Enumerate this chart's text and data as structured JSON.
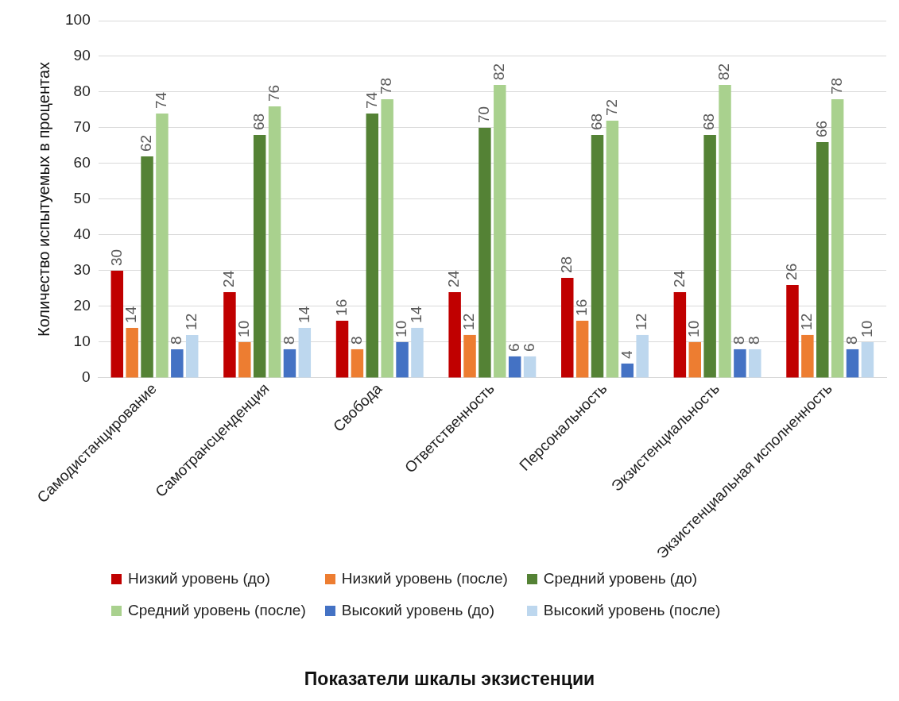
{
  "chart_data": {
    "type": "bar",
    "annotations": [
      "Показатели шкалы экзистенции"
    ],
    "ylabel": "Количество испытуемых в процентах",
    "categories": [
      "Самодистанцирование",
      "Самотрансценденция",
      "Свобода",
      "Ответственность",
      "Персональность",
      "Экзистенциальность",
      "Экзистенциальная исполненность"
    ],
    "series": [
      {
        "name": "Низкий уровень (до)",
        "color": "#c00000",
        "values": [
          30,
          24,
          16,
          24,
          28,
          24,
          26
        ]
      },
      {
        "name": "Низкий уровень (после)",
        "color": "#ed7d31",
        "values": [
          14,
          10,
          8,
          12,
          16,
          10,
          12
        ]
      },
      {
        "name": "Средний уровень (до)",
        "color": "#548235",
        "values": [
          62,
          68,
          74,
          70,
          68,
          68,
          66
        ]
      },
      {
        "name": "Средний уровень (после)",
        "color": "#a9d18e",
        "values": [
          74,
          76,
          78,
          82,
          72,
          82,
          78
        ]
      },
      {
        "name": "Высокий уровень (до)",
        "color": "#4472c4",
        "values": [
          8,
          8,
          10,
          6,
          4,
          8,
          8
        ]
      },
      {
        "name": "Высокий уровень (после)",
        "color": "#bdd7ee",
        "values": [
          12,
          14,
          14,
          6,
          12,
          8,
          10
        ]
      }
    ],
    "ylim": [
      0,
      100
    ],
    "yticks": [
      0,
      10,
      20,
      30,
      40,
      50,
      60,
      70,
      80,
      90,
      100
    ],
    "grid": "y",
    "legend": "bottom",
    "data_labels": true
  }
}
